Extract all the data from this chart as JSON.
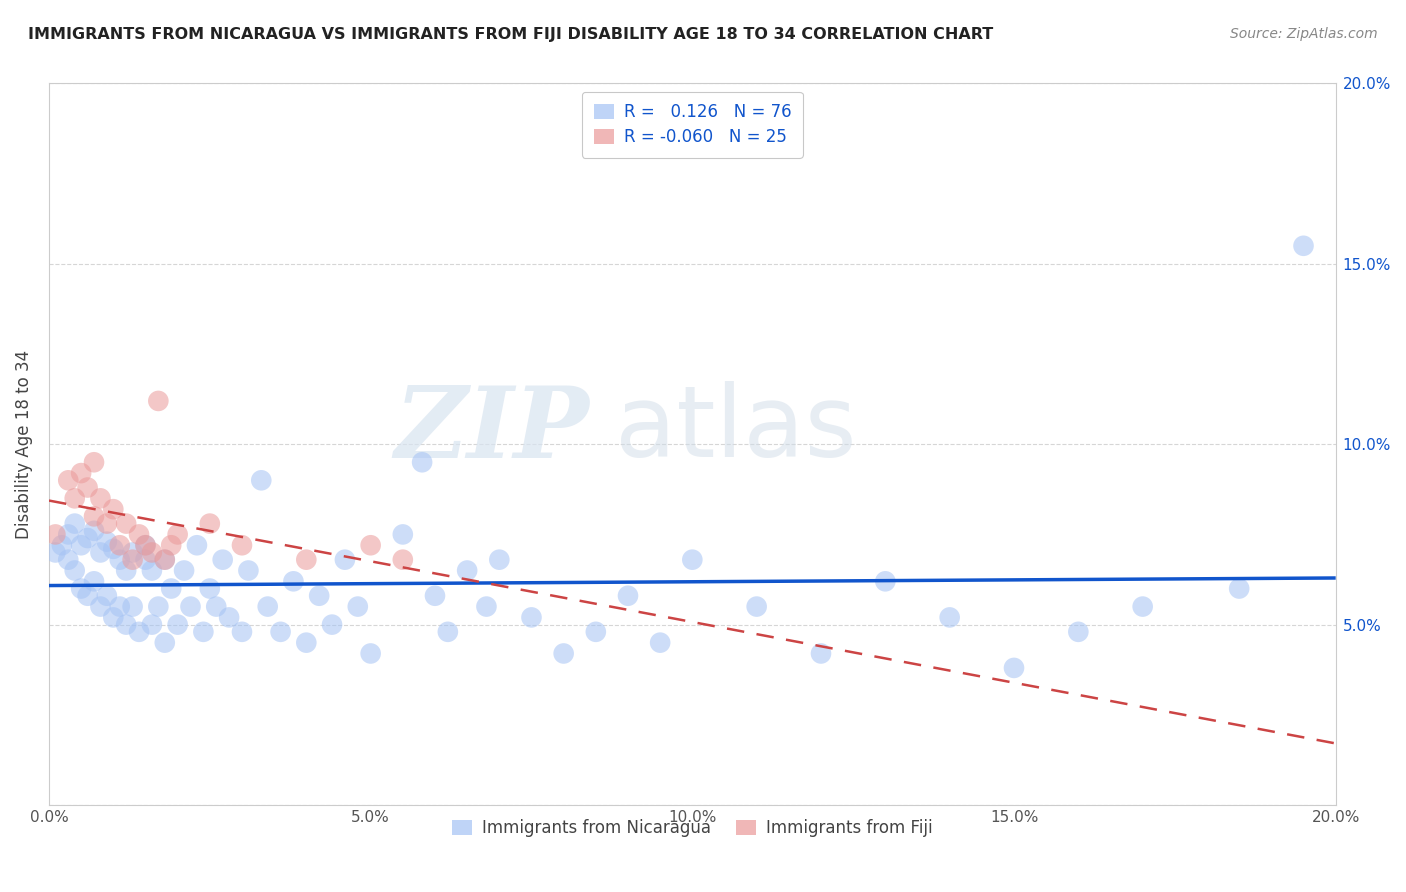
{
  "title": "IMMIGRANTS FROM NICARAGUA VS IMMIGRANTS FROM FIJI DISABILITY AGE 18 TO 34 CORRELATION CHART",
  "source": "Source: ZipAtlas.com",
  "ylabel": "Disability Age 18 to 34",
  "xlim": [
    0.0,
    0.2
  ],
  "ylim": [
    0.0,
    0.2
  ],
  "nicaragua_color": "#a4c2f4",
  "fiji_color": "#ea9999",
  "nicaragua_R": 0.126,
  "nicaragua_N": 76,
  "fiji_R": -0.06,
  "fiji_N": 25,
  "nicaragua_line_color": "#1155cc",
  "fiji_line_color": "#cc4444",
  "watermark_zip": "ZIP",
  "watermark_atlas": "atlas",
  "nicaragua_x": [
    0.001,
    0.002,
    0.003,
    0.003,
    0.004,
    0.004,
    0.005,
    0.005,
    0.006,
    0.006,
    0.007,
    0.007,
    0.008,
    0.008,
    0.009,
    0.009,
    0.01,
    0.01,
    0.011,
    0.011,
    0.012,
    0.012,
    0.013,
    0.013,
    0.014,
    0.015,
    0.015,
    0.016,
    0.016,
    0.017,
    0.018,
    0.018,
    0.019,
    0.02,
    0.021,
    0.022,
    0.023,
    0.024,
    0.025,
    0.026,
    0.027,
    0.028,
    0.03,
    0.031,
    0.033,
    0.034,
    0.036,
    0.038,
    0.04,
    0.042,
    0.044,
    0.046,
    0.048,
    0.05,
    0.055,
    0.058,
    0.06,
    0.062,
    0.065,
    0.068,
    0.07,
    0.075,
    0.08,
    0.085,
    0.09,
    0.095,
    0.1,
    0.11,
    0.12,
    0.13,
    0.14,
    0.15,
    0.16,
    0.17,
    0.185,
    0.195
  ],
  "nicaragua_y": [
    0.07,
    0.072,
    0.068,
    0.075,
    0.065,
    0.078,
    0.06,
    0.072,
    0.058,
    0.074,
    0.062,
    0.076,
    0.055,
    0.07,
    0.058,
    0.073,
    0.052,
    0.071,
    0.055,
    0.068,
    0.05,
    0.065,
    0.055,
    0.07,
    0.048,
    0.068,
    0.072,
    0.05,
    0.065,
    0.055,
    0.045,
    0.068,
    0.06,
    0.05,
    0.065,
    0.055,
    0.072,
    0.048,
    0.06,
    0.055,
    0.068,
    0.052,
    0.048,
    0.065,
    0.09,
    0.055,
    0.048,
    0.062,
    0.045,
    0.058,
    0.05,
    0.068,
    0.055,
    0.042,
    0.075,
    0.095,
    0.058,
    0.048,
    0.065,
    0.055,
    0.068,
    0.052,
    0.042,
    0.048,
    0.058,
    0.045,
    0.068,
    0.055,
    0.042,
    0.062,
    0.052,
    0.038,
    0.048,
    0.055,
    0.06,
    0.155
  ],
  "fiji_x": [
    0.001,
    0.003,
    0.004,
    0.005,
    0.006,
    0.007,
    0.007,
    0.008,
    0.009,
    0.01,
    0.011,
    0.012,
    0.013,
    0.014,
    0.015,
    0.016,
    0.017,
    0.018,
    0.019,
    0.02,
    0.025,
    0.03,
    0.04,
    0.05,
    0.055
  ],
  "fiji_y": [
    0.075,
    0.09,
    0.085,
    0.092,
    0.088,
    0.08,
    0.095,
    0.085,
    0.078,
    0.082,
    0.072,
    0.078,
    0.068,
    0.075,
    0.072,
    0.07,
    0.112,
    0.068,
    0.072,
    0.075,
    0.078,
    0.072,
    0.068,
    0.072,
    0.068
  ]
}
